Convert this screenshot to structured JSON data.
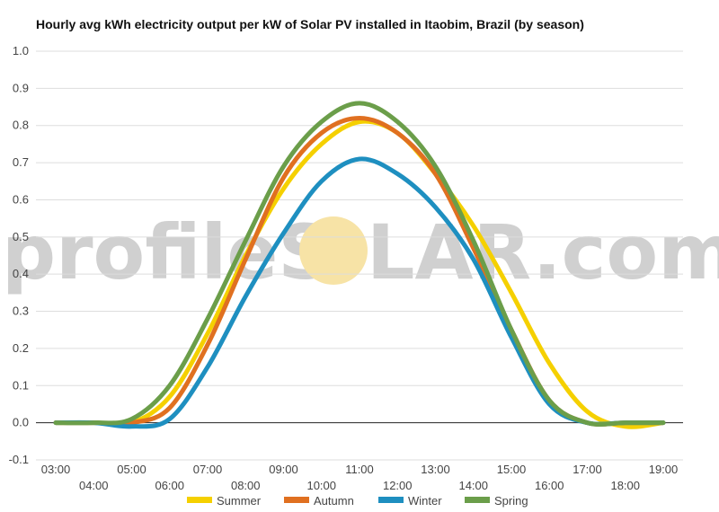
{
  "watermark": {
    "text_left": "profileS",
    "text_right": "LAR.com",
    "sun_color": "#f7e3a6"
  },
  "chart_data": {
    "type": "line",
    "title": "Hourly avg kWh electricity output per kW of Solar PV installed in Itaobim, Brazil (by season)",
    "xlabel": "",
    "ylabel": "",
    "ylim": [
      -0.1,
      1.0
    ],
    "yticks": [
      "1.0",
      "0.9",
      "0.8",
      "0.7",
      "0.6",
      "0.5",
      "0.4",
      "0.3",
      "0.2",
      "0.1",
      "0.0",
      "-0.1"
    ],
    "xticks": [
      "03:00",
      "04:00",
      "05:00",
      "06:00",
      "07:00",
      "08:00",
      "09:00",
      "10:00",
      "11:00",
      "12:00",
      "13:00",
      "14:00",
      "15:00",
      "16:00",
      "17:00",
      "18:00",
      "19:00"
    ],
    "x": [
      3,
      4,
      5,
      6,
      7,
      8,
      9,
      10,
      11,
      12,
      13,
      14,
      15,
      16,
      17,
      18,
      19
    ],
    "grid": true,
    "legend": "bottom",
    "series": [
      {
        "name": "Summer",
        "color": "#f5d000",
        "values": [
          0.0,
          0.0,
          0.0,
          0.07,
          0.24,
          0.45,
          0.63,
          0.75,
          0.81,
          0.78,
          0.67,
          0.53,
          0.35,
          0.16,
          0.03,
          -0.01,
          0.0
        ]
      },
      {
        "name": "Autumn",
        "color": "#e07020",
        "values": [
          0.0,
          0.0,
          0.0,
          0.04,
          0.21,
          0.44,
          0.66,
          0.78,
          0.82,
          0.78,
          0.67,
          0.47,
          0.25,
          0.06,
          0.0,
          0.0,
          0.0
        ]
      },
      {
        "name": "Winter",
        "color": "#1e8fc0",
        "values": [
          0.0,
          0.0,
          -0.01,
          0.01,
          0.15,
          0.34,
          0.51,
          0.65,
          0.71,
          0.67,
          0.58,
          0.44,
          0.23,
          0.05,
          0.0,
          0.0,
          0.0
        ]
      },
      {
        "name": "Spring",
        "color": "#6b9e4a",
        "values": [
          0.0,
          0.0,
          0.01,
          0.1,
          0.28,
          0.49,
          0.69,
          0.81,
          0.86,
          0.81,
          0.69,
          0.49,
          0.25,
          0.06,
          0.0,
          0.0,
          0.0
        ]
      }
    ]
  }
}
